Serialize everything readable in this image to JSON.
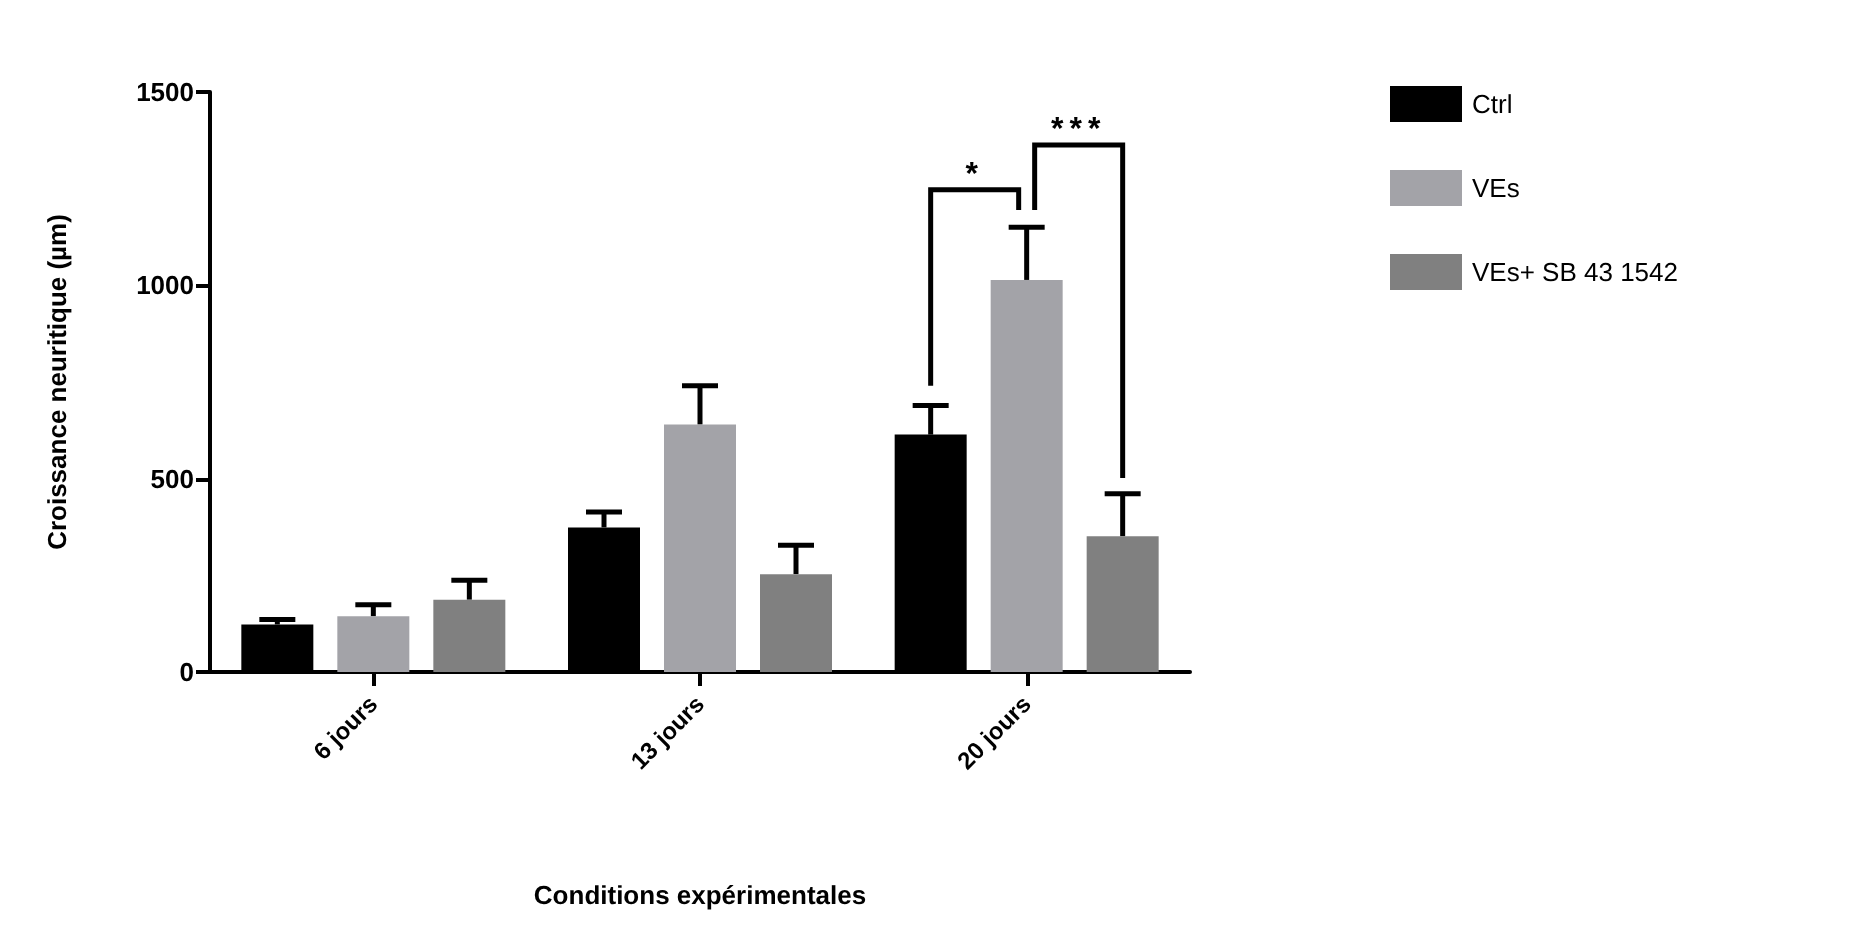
{
  "chart_data": {
    "type": "bar",
    "xlabel": "Conditions expérimentales",
    "ylabel": "Croissance neuritique (µm)",
    "categories": [
      "6 jours",
      "13 jours",
      "20 jours"
    ],
    "series": [
      {
        "name": "Ctrl",
        "color": "#000000",
        "values": [
          123,
          374,
          614
        ],
        "errors": [
          13,
          40,
          75
        ]
      },
      {
        "name": "VEs",
        "color": "#a3a3a8",
        "values": [
          144,
          640,
          1014
        ],
        "errors": [
          30,
          100,
          136
        ]
      },
      {
        "name": "VEs+ SB 43 1542",
        "color": "#808080",
        "values": [
          187,
          253,
          351
        ],
        "errors": [
          50,
          75,
          110
        ]
      }
    ],
    "ylim": [
      0,
      1500
    ],
    "yticks": [
      0,
      500,
      1000,
      1500
    ],
    "grid": false,
    "legend": "top right",
    "annotations": [
      "*",
      "***"
    ]
  }
}
